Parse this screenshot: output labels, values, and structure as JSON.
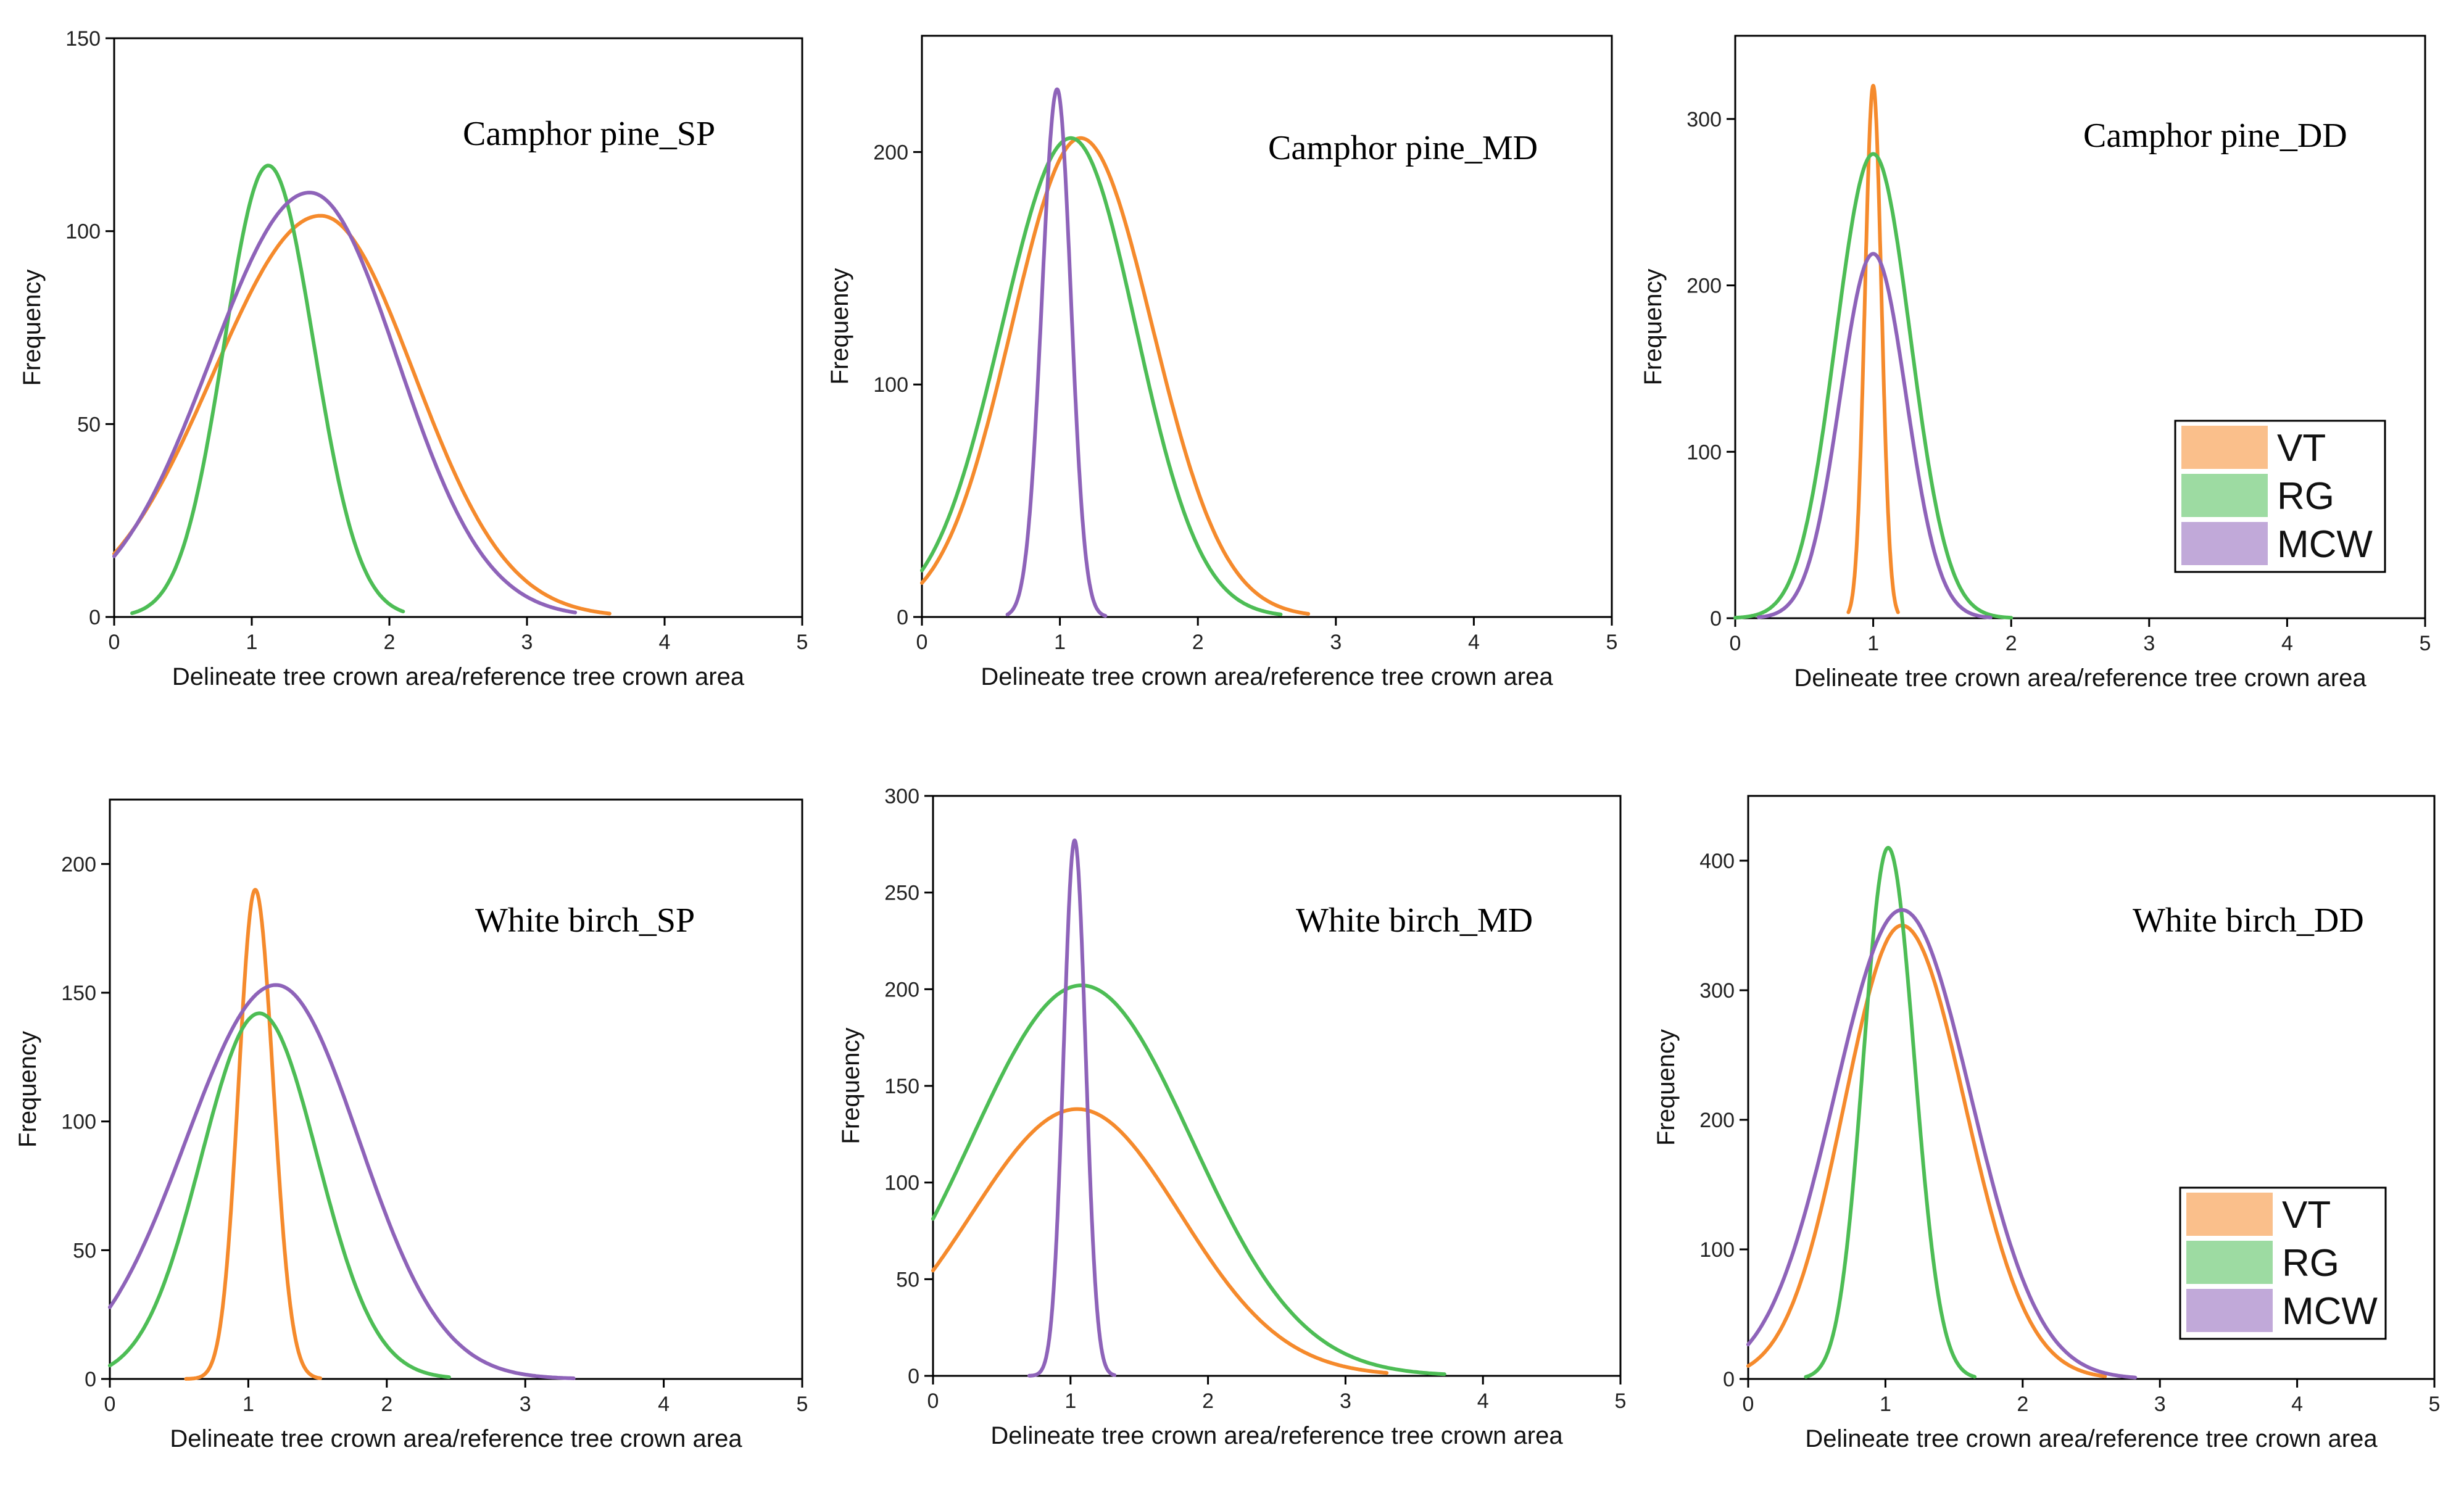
{
  "chart_data": [
    {
      "type": "line",
      "title": "Camphor pine_SP",
      "xlabel": "Delineate tree crown area/reference tree crown area",
      "ylabel": "Frequency",
      "xlim": [
        0,
        5
      ],
      "ylim": [
        0,
        150
      ],
      "xticks": [
        0,
        1,
        2,
        3,
        4,
        5
      ],
      "yticks": [
        0,
        50,
        100,
        150
      ],
      "legend": null,
      "series": [
        {
          "name": "VT",
          "color": "#F58A2C",
          "peak": 104,
          "mu": 1.5,
          "sigmaL": 0.78,
          "sigmaR": 0.68,
          "xmin": 0,
          "xmax": 3.6
        },
        {
          "name": "RG",
          "color": "#4DBD55",
          "peak": 117,
          "mu": 1.12,
          "sigmaL": 0.32,
          "sigmaR": 0.33,
          "xmin": 0.13,
          "xmax": 2.1
        },
        {
          "name": "MCW",
          "color": "#8E63B9",
          "peak": 110,
          "mu": 1.42,
          "sigmaL": 0.72,
          "sigmaR": 0.64,
          "xmin": 0,
          "xmax": 3.35
        }
      ]
    },
    {
      "type": "line",
      "title": "Camphor pine_MD",
      "xlabel": "Delineate tree crown area/reference tree crown area",
      "ylabel": "Frequency",
      "xlim": [
        0,
        5
      ],
      "ylim": [
        0,
        250
      ],
      "xticks": [
        0,
        1,
        2,
        3,
        4,
        5
      ],
      "yticks": [
        0,
        100,
        200
      ],
      "legend": null,
      "series": [
        {
          "name": "VT",
          "color": "#F58A2C",
          "peak": 206,
          "mu": 1.15,
          "sigmaL": 0.5,
          "sigmaR": 0.52,
          "xmin": 0,
          "xmax": 2.8
        },
        {
          "name": "RG",
          "color": "#4DBD55",
          "peak": 206,
          "mu": 1.08,
          "sigmaL": 0.5,
          "sigmaR": 0.47,
          "xmin": 0,
          "xmax": 2.6
        },
        {
          "name": "MCW",
          "color": "#8E63B9",
          "peak": 227,
          "mu": 0.98,
          "sigmaL": 0.11,
          "sigmaR": 0.1,
          "xmin": 0.62,
          "xmax": 1.33
        }
      ]
    },
    {
      "type": "line",
      "title": "Camphor pine_DD",
      "xlabel": "Delineate tree crown area/reference tree crown area",
      "ylabel": "Frequency",
      "xlim": [
        0,
        5
      ],
      "ylim": [
        0,
        350
      ],
      "xticks": [
        0,
        1,
        2,
        3,
        4,
        5
      ],
      "yticks": [
        0,
        100,
        200,
        300
      ],
      "legend": {
        "position": "right",
        "entries": [
          "VT",
          "RG",
          "MCW"
        ]
      },
      "series": [
        {
          "name": "VT",
          "color": "#F58A2C",
          "peak": 320,
          "mu": 1.0,
          "sigmaL": 0.06,
          "sigmaR": 0.06,
          "xmin": 0.82,
          "xmax": 1.18
        },
        {
          "name": "RG",
          "color": "#4DBD55",
          "peak": 279,
          "mu": 1.0,
          "sigmaL": 0.27,
          "sigmaR": 0.27,
          "xmin": 0,
          "xmax": 2.0
        },
        {
          "name": "MCW",
          "color": "#8E63B9",
          "peak": 219,
          "mu": 1.0,
          "sigmaL": 0.24,
          "sigmaR": 0.24,
          "xmin": 0.17,
          "xmax": 1.85
        }
      ]
    },
    {
      "type": "line",
      "title": "White birch_SP",
      "xlabel": "Delineate tree crown area/reference tree crown area",
      "ylabel": "Frequency",
      "xlim": [
        0,
        5
      ],
      "ylim": [
        0,
        225
      ],
      "xticks": [
        0,
        1,
        2,
        3,
        4,
        5
      ],
      "yticks": [
        0,
        50,
        100,
        150,
        200
      ],
      "legend": null,
      "series": [
        {
          "name": "VT",
          "color": "#F58A2C",
          "peak": 190,
          "mu": 1.05,
          "sigmaL": 0.12,
          "sigmaR": 0.13,
          "xmin": 0.55,
          "xmax": 1.52
        },
        {
          "name": "RG",
          "color": "#4DBD55",
          "peak": 142,
          "mu": 1.08,
          "sigmaL": 0.42,
          "sigmaR": 0.42,
          "xmin": 0,
          "xmax": 2.45
        },
        {
          "name": "MCW",
          "color": "#8E63B9",
          "peak": 153,
          "mu": 1.2,
          "sigmaL": 0.65,
          "sigmaR": 0.6,
          "xmin": 0,
          "xmax": 3.35
        }
      ]
    },
    {
      "type": "line",
      "title": "White birch_MD",
      "xlabel": "Delineate tree crown area/reference tree crown area",
      "ylabel": "Frequency",
      "xlim": [
        0,
        5
      ],
      "ylim": [
        0,
        300
      ],
      "xticks": [
        0,
        1,
        2,
        3,
        4,
        5
      ],
      "yticks": [
        0,
        50,
        100,
        150,
        200,
        250,
        300
      ],
      "legend": null,
      "series": [
        {
          "name": "VT",
          "color": "#F58A2C",
          "peak": 138,
          "mu": 1.05,
          "sigmaL": 0.77,
          "sigmaR": 0.75,
          "xmin": 0,
          "xmax": 3.3
        },
        {
          "name": "RG",
          "color": "#4DBD55",
          "peak": 202,
          "mu": 1.08,
          "sigmaL": 0.8,
          "sigmaR": 0.8,
          "xmin": 0,
          "xmax": 3.72
        },
        {
          "name": "MCW",
          "color": "#8E63B9",
          "peak": 277,
          "mu": 1.03,
          "sigmaL": 0.08,
          "sigmaR": 0.08,
          "xmin": 0.7,
          "xmax": 1.32
        }
      ]
    },
    {
      "type": "line",
      "title": "White birch_DD",
      "xlabel": "Delineate tree crown area/reference tree crown area",
      "ylabel": "Frequency",
      "xlim": [
        0,
        5
      ],
      "ylim": [
        0,
        450
      ],
      "xticks": [
        0,
        1,
        2,
        3,
        4,
        5
      ],
      "yticks": [
        0,
        100,
        200,
        300,
        400
      ],
      "legend": {
        "position": "right",
        "entries": [
          "VT",
          "RG",
          "MCW"
        ]
      },
      "series": [
        {
          "name": "VT",
          "color": "#F58A2C",
          "peak": 350,
          "mu": 1.12,
          "sigmaL": 0.42,
          "sigmaR": 0.46,
          "xmin": 0,
          "xmax": 2.6
        },
        {
          "name": "RG",
          "color": "#4DBD55",
          "peak": 410,
          "mu": 1.02,
          "sigmaL": 0.18,
          "sigmaR": 0.19,
          "xmin": 0.42,
          "xmax": 1.65
        },
        {
          "name": "MCW",
          "color": "#8E63B9",
          "peak": 362,
          "mu": 1.12,
          "sigmaL": 0.49,
          "sigmaR": 0.5,
          "xmin": 0,
          "xmax": 2.82
        }
      ]
    }
  ]
}
